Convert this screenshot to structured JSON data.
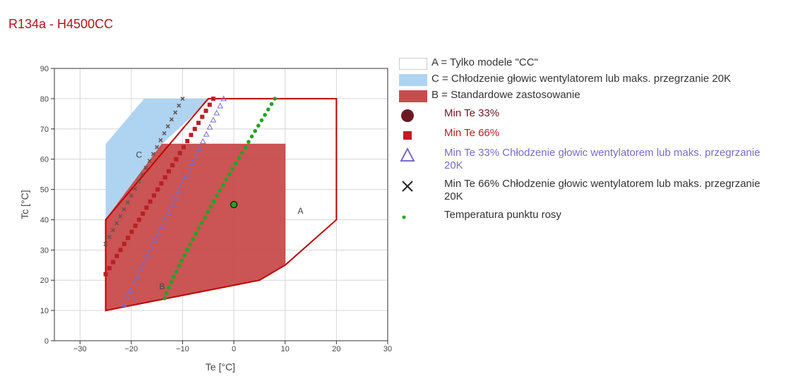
{
  "title": "R134a - H4500CC",
  "colors": {
    "title": "#b5121b",
    "regionA_stroke": "#c00000",
    "regionB_fill": "#c84b4b",
    "regionC_fill": "#aed4f2",
    "min33": "#6b1a22",
    "min66": "#b82025",
    "min33c": "#7b6bc9",
    "min66c": "#6a5350",
    "dew": "#1fa524"
  },
  "chart_data": {
    "type": "scatter",
    "xlabel": "Te [°C]",
    "ylabel": "Tc [°C]",
    "xlim": [
      -35,
      30
    ],
    "ylim": [
      0,
      90
    ],
    "x_ticks": [
      -30,
      -20,
      -10,
      0,
      10,
      20,
      30
    ],
    "y_ticks": [
      0,
      10,
      20,
      30,
      40,
      50,
      60,
      70,
      80,
      90
    ],
    "grid": true,
    "legend_position": "right",
    "regions": [
      {
        "name": "A = Tylko modele \"CC\"",
        "label": "A",
        "label_at": [
          13,
          42
        ],
        "points": [
          [
            -5,
            80
          ],
          [
            20,
            80
          ],
          [
            20,
            40
          ],
          [
            10,
            25
          ],
          [
            5,
            20
          ],
          [
            -25,
            10
          ],
          [
            -25,
            40
          ]
        ]
      },
      {
        "name": "C = Chłodzenie głowic wentylatorem lub maks. przegrzanie 20K",
        "label": "C",
        "label_at": [
          -18.5,
          60.5
        ],
        "points": [
          [
            -25,
            65
          ],
          [
            -17.5,
            80
          ],
          [
            -4.5,
            80
          ],
          [
            -14,
            65
          ],
          [
            -25,
            40
          ]
        ]
      },
      {
        "name": "B = Standardowe zastosowanie",
        "label": "B",
        "label_at": [
          -14,
          17
        ],
        "points": [
          [
            -25,
            40
          ],
          [
            -14,
            65
          ],
          [
            10,
            65
          ],
          [
            10,
            25
          ],
          [
            5,
            20
          ],
          [
            -25,
            10
          ]
        ]
      }
    ],
    "series": [
      {
        "name": "Min Te 33%",
        "marker": "circle",
        "points": [
          [
            0,
            45
          ]
        ]
      },
      {
        "name": "Min Te 66%",
        "marker": "square",
        "from": [
          -25,
          22
        ],
        "to": [
          -4,
          80
        ],
        "count": 30
      },
      {
        "name": "Min Te 33% Chłodzenie głowic wentylatorem lub maks. przegrzanie 20K",
        "marker": "triangle",
        "from": [
          -21.5,
          12
        ],
        "to": [
          -2,
          80
        ],
        "count": 30
      },
      {
        "name": "Min Te 66% Chłodzenie głowic wentylatorem lub maks. przegrzanie 20K",
        "marker": "x",
        "from": [
          -25,
          32
        ],
        "to": [
          -10,
          80
        ],
        "count": 22
      },
      {
        "name": "Temperatura punktu rosy",
        "marker": "dot",
        "from": [
          -13.5,
          14
        ],
        "to": [
          8,
          80
        ],
        "count": 38
      }
    ]
  },
  "legend": [
    {
      "label": "A = Tylko modele \"CC\"",
      "kind": "box-empty",
      "text_color": "#333333"
    },
    {
      "label": "C = Chłodzenie głowic wentylatorem lub maks. przegrzanie 20K",
      "kind": "box-blue",
      "text_color": "#333333"
    },
    {
      "label": "B = Standardowe zastosowanie",
      "kind": "box-red",
      "text_color": "#333333"
    },
    {
      "label": "Min Te 33%",
      "kind": "circle",
      "text_color": "#6b1a22"
    },
    {
      "label": "Min Te 66%",
      "kind": "square",
      "text_color": "#b82025"
    },
    {
      "label": "Min Te 33% Chłodzenie głowic wentylatorem lub maks. przegrzanie 20K",
      "kind": "triangle",
      "text_color": "#7b6bc9"
    },
    {
      "label": "Min Te 66% Chłodzenie głowic wentylatorem lub maks. przegrzanie 20K",
      "kind": "x",
      "text_color": "#333333"
    },
    {
      "label": "Temperatura punktu rosy",
      "kind": "dot",
      "text_color": "#333333"
    }
  ]
}
